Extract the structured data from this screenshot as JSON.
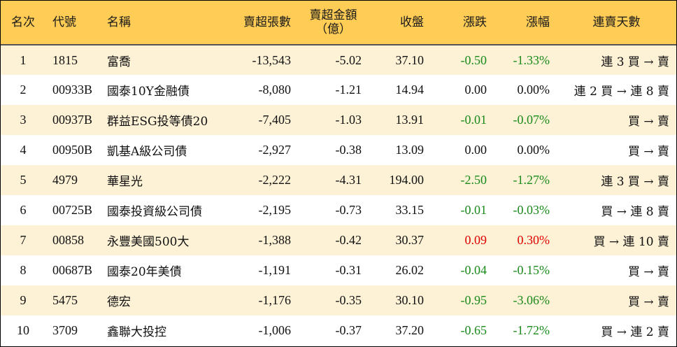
{
  "headers": {
    "rank": "名次",
    "code": "代號",
    "name": "名稱",
    "net_sell_lots": "賣超張數",
    "net_sell_amount_line1": "賣超金額",
    "net_sell_amount_line2": "（億）",
    "close": "收盤",
    "change": "漲跌",
    "change_pct": "漲幅",
    "consecutive_days": "連賣天數"
  },
  "colors": {
    "header_bg": "#ffcc55",
    "stripe_bg": "#fdf1d6",
    "negative": "#1a8a1a",
    "positive": "#e00000"
  },
  "rows": [
    {
      "rank": "1",
      "code": "1815",
      "name": "富喬",
      "lots": "-13,543",
      "amount": "-5.02",
      "close": "37.10",
      "change": "-0.50",
      "pct": "-1.33%",
      "dir": "neg",
      "days": "連 3 買 → 賣"
    },
    {
      "rank": "2",
      "code": "00933B",
      "name": "國泰10Y金融債",
      "lots": "-8,080",
      "amount": "-1.21",
      "close": "14.94",
      "change": "0.00",
      "pct": "0.00%",
      "dir": "flat",
      "days": "連 2 買 → 連 8 賣"
    },
    {
      "rank": "3",
      "code": "00937B",
      "name": "群益ESG投等債20",
      "lots": "-7,405",
      "amount": "-1.03",
      "close": "13.91",
      "change": "-0.01",
      "pct": "-0.07%",
      "dir": "neg",
      "days": "買 → 賣"
    },
    {
      "rank": "4",
      "code": "00950B",
      "name": "凱基A級公司債",
      "lots": "-2,927",
      "amount": "-0.38",
      "close": "13.09",
      "change": "0.00",
      "pct": "0.00%",
      "dir": "flat",
      "days": "買 → 賣"
    },
    {
      "rank": "5",
      "code": "4979",
      "name": "華星光",
      "lots": "-2,222",
      "amount": "-4.31",
      "close": "194.00",
      "change": "-2.50",
      "pct": "-1.27%",
      "dir": "neg",
      "days": "連 3 買 → 賣"
    },
    {
      "rank": "6",
      "code": "00725B",
      "name": "國泰投資級公司債",
      "lots": "-2,195",
      "amount": "-0.73",
      "close": "33.15",
      "change": "-0.01",
      "pct": "-0.03%",
      "dir": "neg",
      "days": "買 → 連 8 賣"
    },
    {
      "rank": "7",
      "code": "00858",
      "name": "永豐美國500大",
      "lots": "-1,388",
      "amount": "-0.42",
      "close": "30.37",
      "change": "0.09",
      "pct": "0.30%",
      "dir": "pos",
      "days": "買 → 連 10 賣"
    },
    {
      "rank": "8",
      "code": "00687B",
      "name": "國泰20年美債",
      "lots": "-1,191",
      "amount": "-0.31",
      "close": "26.02",
      "change": "-0.04",
      "pct": "-0.15%",
      "dir": "neg",
      "days": "買 → 賣"
    },
    {
      "rank": "9",
      "code": "5475",
      "name": "德宏",
      "lots": "-1,176",
      "amount": "-0.35",
      "close": "30.10",
      "change": "-0.95",
      "pct": "-3.06%",
      "dir": "neg",
      "days": "買 → 賣"
    },
    {
      "rank": "10",
      "code": "3709",
      "name": "鑫聯大投控",
      "lots": "-1,006",
      "amount": "-0.37",
      "close": "37.20",
      "change": "-0.65",
      "pct": "-1.72%",
      "dir": "neg",
      "days": "買 → 連 2 賣"
    }
  ]
}
